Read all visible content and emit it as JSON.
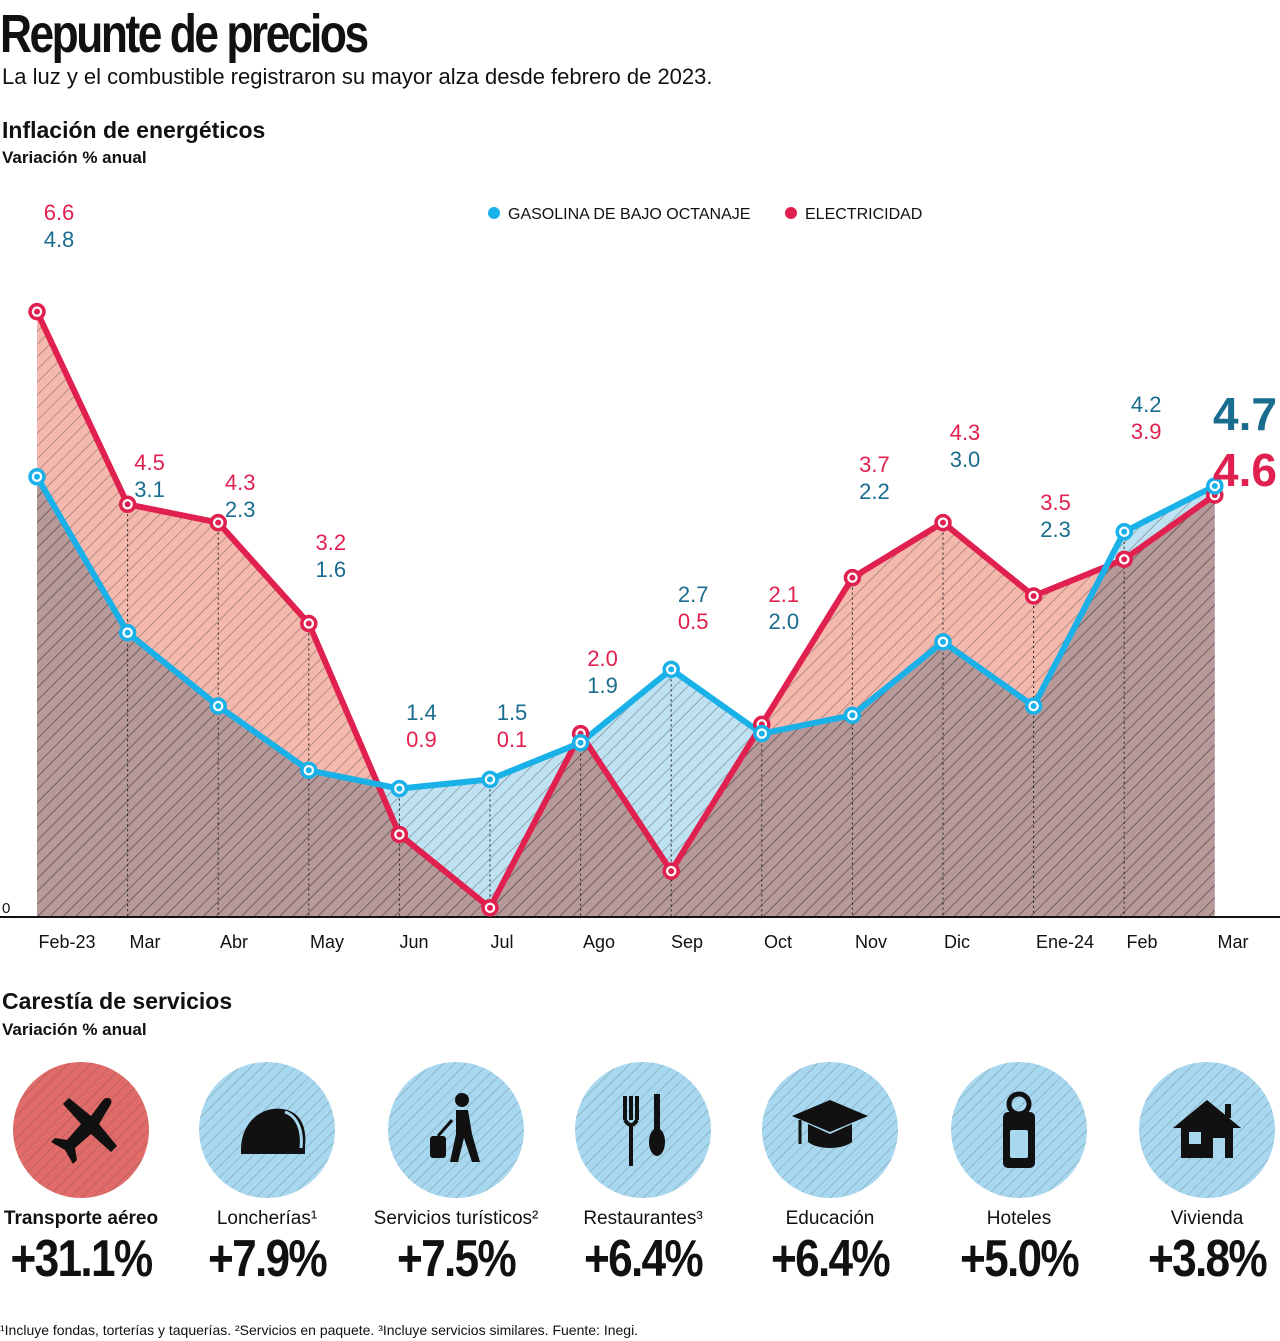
{
  "header": {
    "title": "Repunte de precios",
    "subtitle": "La luz y el combustible registraron su mayor alza desde febrero de 2023."
  },
  "energy_section": {
    "title": "Inflación de energéticos",
    "unit": "Variación % anual"
  },
  "chart_data": {
    "type": "line",
    "title": "Inflación de energéticos",
    "ylabel": "Variación % anual",
    "categories": [
      "Feb-23",
      "Mar",
      "Abr",
      "May",
      "Jun",
      "Jul",
      "Ago",
      "Sep",
      "Oct",
      "Nov",
      "Dic",
      "Ene-24",
      "Feb",
      "Mar"
    ],
    "series": [
      {
        "name": "GASOLINA DE BAJO OCTANAJE",
        "color": "#1ab0e8",
        "label_color": "#1a6d8f",
        "values": [
          4.8,
          3.1,
          2.3,
          1.6,
          1.4,
          1.5,
          1.9,
          2.7,
          2.0,
          2.2,
          3.0,
          2.3,
          4.2,
          4.7
        ]
      },
      {
        "name": "ELECTRICIDAD",
        "color": "#e0204e",
        "label_color": "#e0204e",
        "values": [
          6.6,
          4.5,
          4.3,
          3.2,
          0.9,
          0.1,
          2.0,
          0.5,
          2.1,
          3.7,
          4.3,
          3.5,
          3.9,
          4.6
        ]
      }
    ],
    "point_labels": [
      [
        "6.6",
        "4.8"
      ],
      [
        "4.5",
        "3.1"
      ],
      [
        "4.3",
        "2.3"
      ],
      [
        "3.2",
        "1.6"
      ],
      [
        "1.4",
        "0.9"
      ],
      [
        "1.5",
        "0.1"
      ],
      [
        "2.0",
        "1.9"
      ],
      [
        "2.7",
        "0.5"
      ],
      [
        "2.1",
        "2.0"
      ],
      [
        "3.7",
        "2.2"
      ],
      [
        "4.3",
        "3.0"
      ],
      [
        "3.5",
        "2.3"
      ],
      [
        "4.2",
        "3.9"
      ],
      [
        "4.7",
        "4.6"
      ]
    ],
    "zero_label": "0",
    "ylim": [
      0,
      7
    ],
    "legend": "top-center"
  },
  "services_section": {
    "title": "Carestía de servicios",
    "unit": "Variación % anual",
    "items": [
      {
        "name": "Transporte aéreo",
        "value": "+31.1%",
        "icon": "airplane-icon",
        "color": "#e06b68"
      },
      {
        "name": "Loncherías¹",
        "value": "+7.9%",
        "icon": "taco-icon",
        "color": "#a8d8f0"
      },
      {
        "name": "Servicios turísticos²",
        "value": "+7.5%",
        "icon": "traveler-icon",
        "color": "#a8d8f0"
      },
      {
        "name": "Restaurantes³",
        "value": "+6.4%",
        "icon": "cutlery-icon",
        "color": "#a8d8f0"
      },
      {
        "name": "Educación",
        "value": "+6.4%",
        "icon": "graduation-cap-icon",
        "color": "#a8d8f0"
      },
      {
        "name": "Hoteles",
        "value": "+5.0%",
        "icon": "door-hanger-icon",
        "color": "#a8d8f0"
      },
      {
        "name": "Vivienda",
        "value": "+3.8%",
        "icon": "house-icon",
        "color": "#a8d8f0"
      }
    ]
  },
  "footnote": "¹Incluye fondas, torterías y taquerías. ²Servicios en paquete. ³Incluye servicios similares. Fuente: Inegi."
}
